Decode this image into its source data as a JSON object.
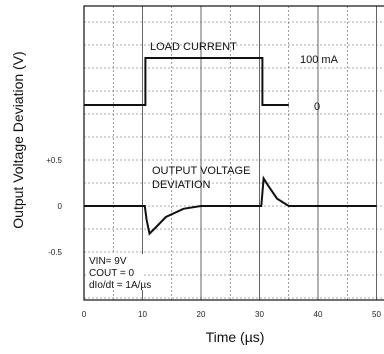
{
  "chart_data": {
    "type": "line",
    "title": "",
    "xlabel": "Time (µs)",
    "ylabel": "Output Voltage Deviation (V)",
    "xlim": [
      0,
      50
    ],
    "ylim": [
      -0.9,
      0.9
    ],
    "x_ticks": [
      "0",
      "10",
      "20",
      "30",
      "40",
      "50"
    ],
    "y_ticks": [
      "+0.5",
      "0",
      "-0.5"
    ],
    "grid": true,
    "series": [
      {
        "name": "LOAD CURRENT",
        "x": [
          0,
          10.5,
          10.5,
          30.5,
          30.5,
          35
        ],
        "y_mA": [
          0,
          0,
          100,
          100,
          0,
          0
        ]
      },
      {
        "name": "OUTPUT VOLTAGE DEVIATION",
        "x": [
          0,
          10.4,
          10.7,
          11.2,
          12,
          14,
          17,
          20,
          30.3,
          30.7,
          31.5,
          33,
          35,
          50
        ],
        "y": [
          0,
          0,
          -0.15,
          -0.3,
          -0.25,
          -0.12,
          -0.03,
          0,
          0,
          0.3,
          0.22,
          0.08,
          0,
          0
        ]
      }
    ],
    "annotations": {
      "load_label": "LOAD CURRENT",
      "load_high": "100 mA",
      "load_low": "0",
      "vout_label_1": "OUTPUT VOLTAGE",
      "vout_label_2": "DEVIATION",
      "cond_1": "VIN= 9V",
      "cond_2": "COUT = 0",
      "cond_3": "dIo/dt = 1A/µs"
    }
  }
}
